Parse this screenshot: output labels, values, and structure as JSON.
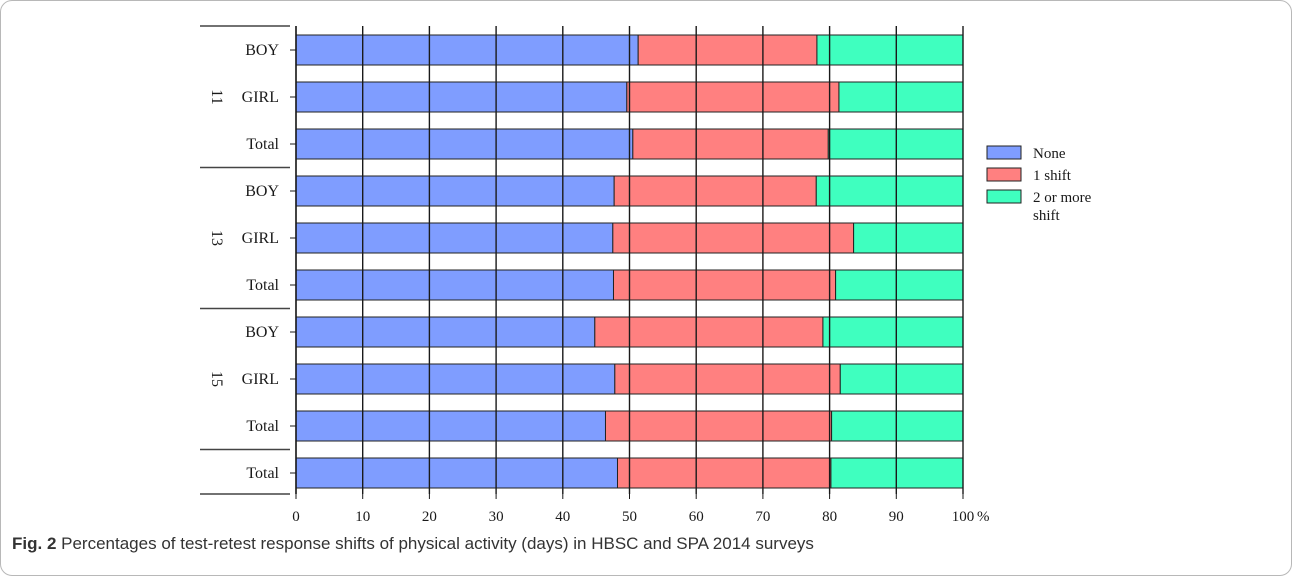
{
  "chart_data": {
    "type": "bar",
    "orientation": "horizontal",
    "stacked": true,
    "xlim": [
      0,
      100
    ],
    "x_ticks": [
      "0",
      "10",
      "20",
      "30",
      "40",
      "50",
      "60",
      "70",
      "80",
      "90",
      "100"
    ],
    "x_unit": "%",
    "grid": "vertical",
    "legend_position": "right",
    "groups": [
      {
        "label": "11",
        "rows": [
          "BOY",
          "GIRL",
          "Total"
        ]
      },
      {
        "label": "13",
        "rows": [
          "BOY",
          "GIRL",
          "Total"
        ]
      },
      {
        "label": "15",
        "rows": [
          "BOY",
          "GIRL",
          "Total"
        ]
      },
      {
        "label": "",
        "rows": [
          "Total"
        ]
      }
    ],
    "categories": [
      "11 BOY",
      "11 GIRL",
      "11 Total",
      "13 BOY",
      "13 GIRL",
      "13 Total",
      "15 BOY",
      "15 GIRL",
      "15 Total",
      "Total"
    ],
    "series": [
      {
        "name": "None",
        "color": "#7f9dff",
        "values": [
          51.3,
          49.6,
          50.5,
          47.7,
          47.5,
          47.6,
          44.8,
          47.8,
          46.4,
          48.2
        ]
      },
      {
        "name": "1 shift",
        "color": "#ff8080",
        "values": [
          26.8,
          31.8,
          29.3,
          30.3,
          36.1,
          33.3,
          34.2,
          33.8,
          33.9,
          32.0
        ]
      },
      {
        "name": "2 or more shift",
        "color": "#3fffbf",
        "values": [
          21.9,
          18.6,
          20.2,
          22.0,
          16.4,
          19.1,
          21.0,
          18.4,
          19.7,
          19.8
        ]
      }
    ]
  },
  "caption": {
    "label": "Fig. 2",
    "text": "Percentages of test-retest response shifts of physical activity (days) in HBSC and SPA 2014 surveys"
  }
}
